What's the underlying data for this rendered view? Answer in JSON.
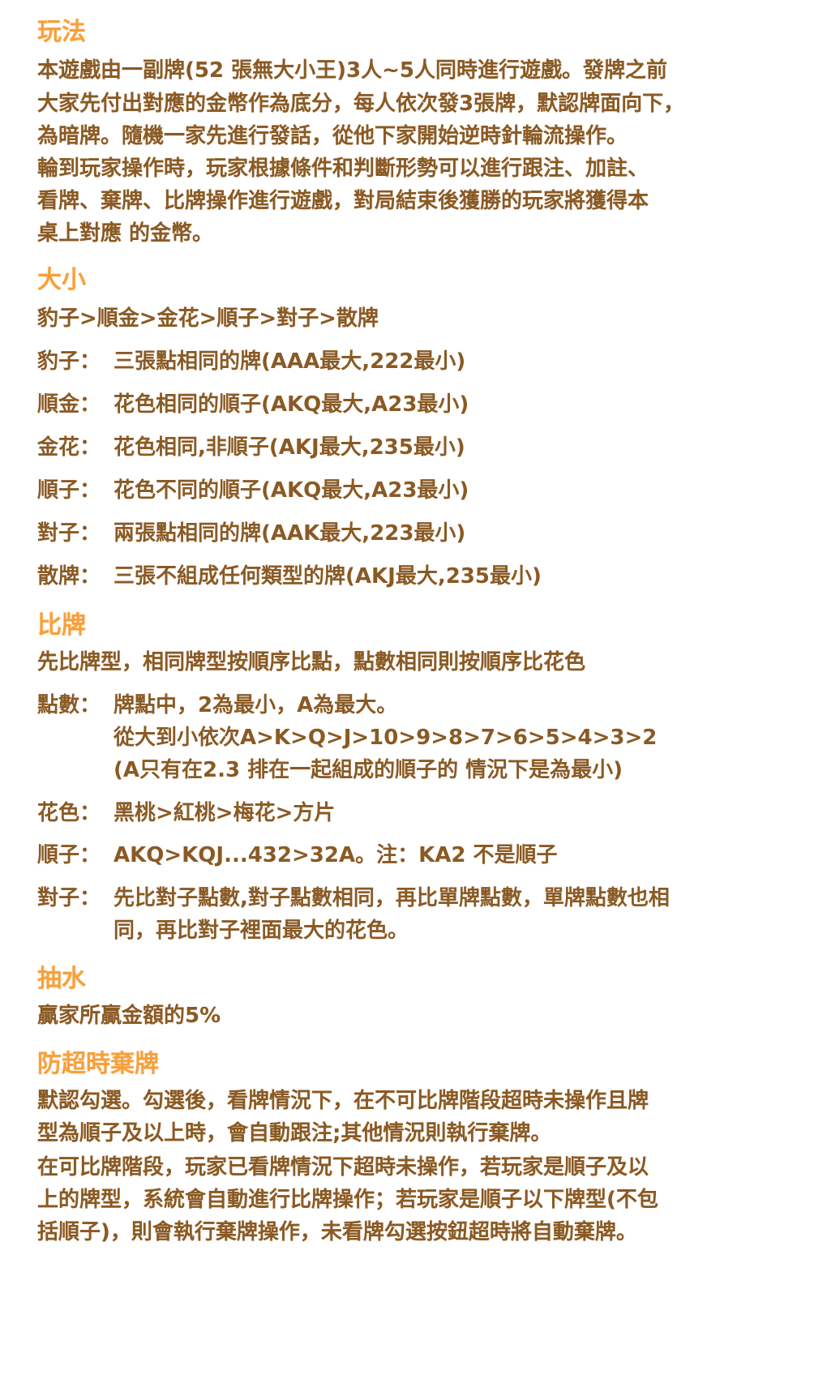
{
  "colors": {
    "heading": "#f7a03c",
    "body": "#8a5a24"
  },
  "gameplay": {
    "title": "玩法",
    "lines": [
      "本遊戲由一副牌(52 張無大小王)3人~5人同時進行遊戲。發牌之前",
      "大家先付出對應的金幣作為底分，每人依次發3張牌，默認牌面向下，",
      "為暗牌。隨機一家先進行發話，從他下家開始逆時針輪流操作。",
      "輪到玩家操作時，玩家根據條件和判斷形勢可以進行跟注、加註、",
      "看牌、棄牌、比牌操作進行遊戲，對局結束後獲勝的玩家將獲得本",
      "桌上對應 的金幣。"
    ]
  },
  "ranking": {
    "title": "大小",
    "summary": "豹子>順金>金花>順子>對子>散牌",
    "items": [
      {
        "label": "豹子：",
        "text": "三張點相同的牌(AAA最大,222最小)"
      },
      {
        "label": "順金：",
        "text": "花色相同的順子(AKQ最大,A23最小)"
      },
      {
        "label": "金花：",
        "text": "花色相同,非順子(AKJ最大,235最小)"
      },
      {
        "label": "順子：",
        "text": "花色不同的順子(AKQ最大,A23最小)"
      },
      {
        "label": "對子：",
        "text": "兩張點相同的牌(AAK最大,223最小)"
      },
      {
        "label": "散牌：",
        "text": "三張不組成任何類型的牌(AKJ最大,235最小)"
      }
    ]
  },
  "compare": {
    "title": "比牌",
    "summary": "先比牌型，相同牌型按順序比點，點數相同則按順序比花色",
    "points": {
      "label": "點數：",
      "lines": [
        "牌點中，2為最小，A為最大。",
        "從大到小依次A>K>Q>J>10>9>8>7>6>5>4>3>2",
        "(A只有在2.3 排在一起組成的順子的 情況下是為最小)"
      ]
    },
    "suits": {
      "label": "花色：",
      "lines": [
        "黑桃>紅桃>梅花>方片"
      ]
    },
    "straight": {
      "label": "順子：",
      "lines": [
        "AKQ>KQJ...432>32A。注：KA2 不是順子"
      ]
    },
    "pair": {
      "label": "對子：",
      "lines": [
        "先比對子點數,對子點數相同，再比單牌點數，單牌點數也相",
        "同，再比對子裡面最大的花色。"
      ]
    }
  },
  "rake": {
    "title": "抽水",
    "text": "贏家所贏金額的5%"
  },
  "timeout": {
    "title": "防超時棄牌",
    "lines": [
      "默認勾選。勾選後，看牌情況下，在不可比牌階段超時未操作且牌",
      "型為順子及以上時，會自動跟注;其他情況則執行棄牌。",
      "在可比牌階段，玩家已看牌情況下超時未操作，若玩家是順子及以",
      "上的牌型，系統會自動進行比牌操作；若玩家是順子以下牌型(不包",
      "括順子)，則會執行棄牌操作，未看牌勾選按鈕超時將自動棄牌。"
    ]
  }
}
